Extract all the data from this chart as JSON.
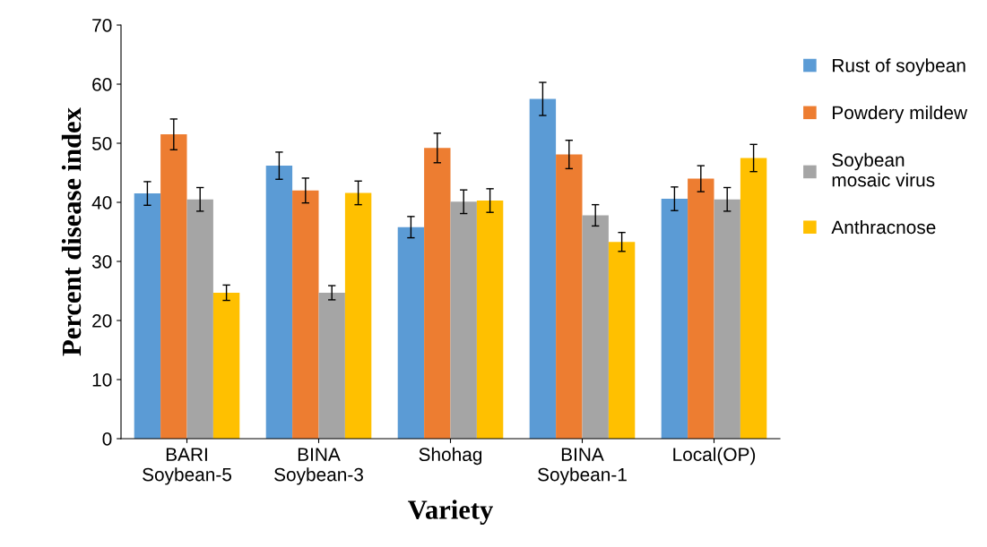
{
  "chart_data": {
    "type": "bar",
    "xlabel": "Variety",
    "ylabel": "Percent disease index",
    "categories": [
      "BARI\nSoybean-5",
      "BINA\nSoybean-3",
      "Shohag",
      "BINA\nSoybean-1",
      "Local(OP)"
    ],
    "series": [
      {
        "name": "Rust of soybean",
        "color": "#5b9bd5",
        "values": [
          41.5,
          46.2,
          35.8,
          57.5,
          40.6
        ],
        "errors": [
          2,
          2.3,
          1.8,
          2.8,
          2
        ]
      },
      {
        "name": "Powdery mildew",
        "color": "#ed7d31",
        "values": [
          51.5,
          42,
          49.2,
          48.1,
          44
        ],
        "errors": [
          2.6,
          2.1,
          2.5,
          2.4,
          2.2
        ]
      },
      {
        "name": "Soybean mosaic virus",
        "color": "#a5a5a5",
        "values": [
          40.5,
          24.7,
          40.1,
          37.8,
          40.5
        ],
        "errors": [
          2,
          1.2,
          2,
          1.8,
          2
        ]
      },
      {
        "name": "Anthracnose",
        "color": "#ffc000",
        "values": [
          24.7,
          41.6,
          40.3,
          33.3,
          47.5
        ],
        "errors": [
          1.3,
          2,
          2,
          1.6,
          2.3
        ]
      }
    ],
    "ylim": [
      0,
      70
    ],
    "yticks": [
      0,
      10,
      20,
      30,
      40,
      50,
      60,
      70
    ],
    "grid": false,
    "legend": "right"
  }
}
